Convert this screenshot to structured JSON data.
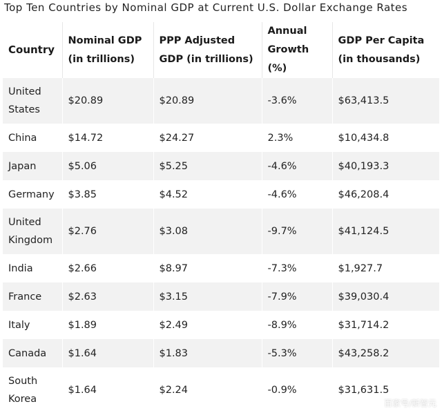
{
  "title": "Top Ten Countries by Nominal GDP at Current U.S. Dollar Exchange Rates",
  "table": {
    "headers": [
      "Country",
      "Nominal GDP (in trillions)",
      "PPP Adjusted GDP (in trillions)",
      "Annual Growth (%)",
      "GDP Per Capita (in thousands)"
    ],
    "rows": [
      [
        "United States",
        "$20.89",
        "$20.89",
        "-3.6%",
        "$63,413.5"
      ],
      [
        "China",
        "$14.72",
        "$24.27",
        "2.3%",
        "$10,434.8"
      ],
      [
        "Japan",
        "$5.06",
        "$5.25",
        "-4.6%",
        "$40,193.3"
      ],
      [
        "Germany",
        "$3.85",
        "$4.52",
        "-4.6%",
        "$46,208.4"
      ],
      [
        "United Kingdom",
        "$2.76",
        "$3.08",
        "-9.7%",
        "$41,124.5"
      ],
      [
        "India",
        "$2.66",
        "$8.97",
        "-7.3%",
        "$1,927.7"
      ],
      [
        "France",
        "$2.63",
        "$3.15",
        "-7.9%",
        "$39,030.4"
      ],
      [
        "Italy",
        "$1.89",
        "$2.49",
        "-8.9%",
        "$31,714.2"
      ],
      [
        "Canada",
        "$1.64",
        "$1.83",
        "-5.3%",
        "$43,258.2"
      ],
      [
        "South Korea",
        "$1.64",
        "$2.24",
        "-0.9%",
        "$31,631.5"
      ]
    ]
  },
  "watermark": "百家号/新智元",
  "colors": {
    "striped_row": "#f2f2f2",
    "text": "#222222"
  }
}
